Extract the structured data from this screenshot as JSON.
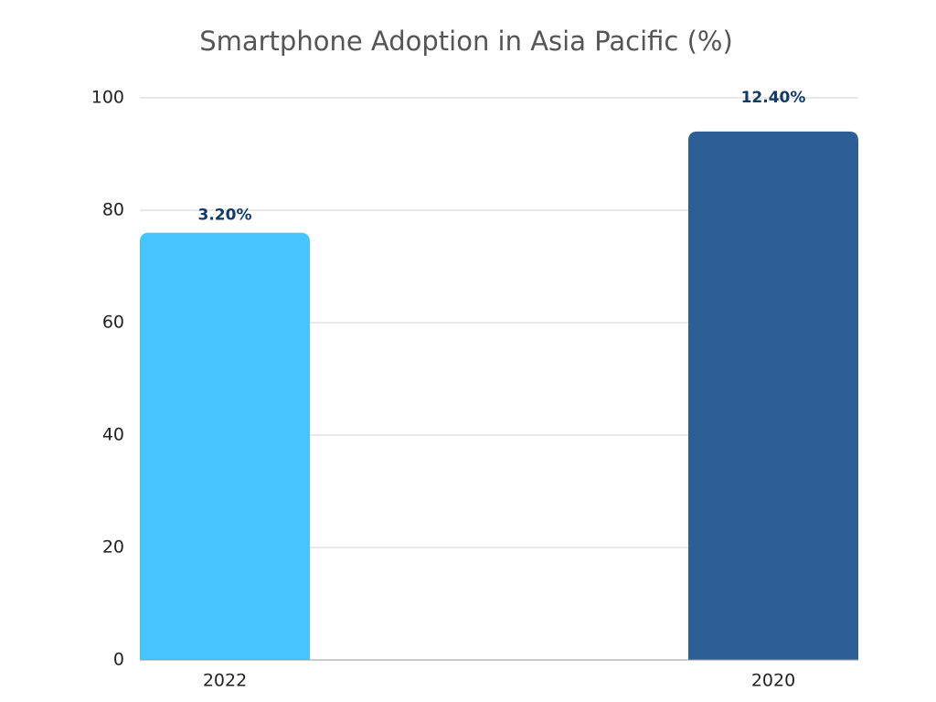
{
  "chart_data": {
    "type": "bar",
    "title": "Smartphone Adoption in Asia Pacific (%)",
    "categories": [
      "2022",
      "2020"
    ],
    "values": [
      76,
      94
    ],
    "colors": [
      "#48c4fc",
      "#2e5e96"
    ],
    "annotations": [
      "3.20%",
      "12.40%"
    ],
    "ylim": [
      0,
      100
    ],
    "yticks": [
      0,
      20,
      40,
      60,
      80,
      100
    ],
    "grid": true
  }
}
